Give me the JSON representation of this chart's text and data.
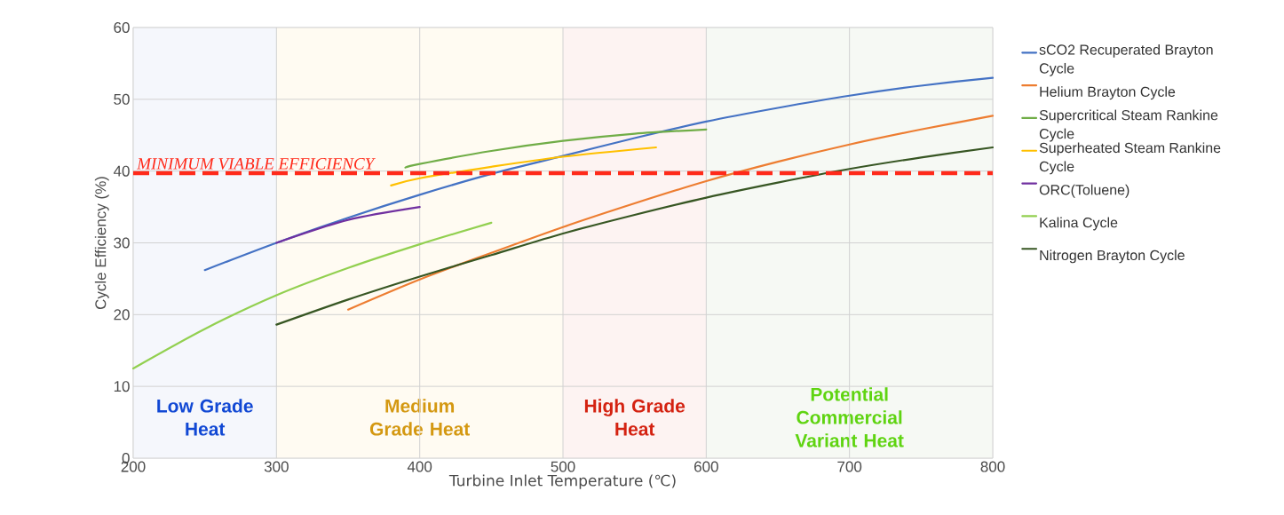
{
  "chart_data": {
    "type": "line",
    "xlabel": "Turbine Inlet Temperature (℃)",
    "ylabel": "Cycle Efficiency (%)",
    "xlim": [
      200,
      800
    ],
    "xticks": [
      200,
      300,
      400,
      500,
      600,
      700,
      800
    ],
    "ylim": [
      0,
      60
    ],
    "yticks": [
      0,
      10,
      20,
      30,
      40,
      50,
      60
    ],
    "grid": true,
    "legend": "right",
    "marker": "none",
    "line_style": "solid",
    "series": [
      {
        "name": "sCO2 Recuperated Brayton Cycle",
        "color": "#4472c4",
        "x": [
          250,
          300,
          350,
          400,
          450,
          500,
          550,
          600,
          650,
          700,
          750,
          800
        ],
        "values": [
          26.2,
          30,
          33.5,
          36.7,
          39.6,
          42.1,
          44.6,
          46.9,
          48.8,
          50.5,
          51.9,
          53.0
        ]
      },
      {
        "name": "Helium Brayton Cycle",
        "color": "#ed7d31",
        "x": [
          350,
          400,
          450,
          500,
          550,
          600,
          650,
          700,
          750,
          800
        ],
        "values": [
          20.7,
          24.9,
          28.6,
          32.2,
          35.5,
          38.6,
          41.3,
          43.7,
          45.8,
          47.7
        ]
      },
      {
        "name": "Supercritical Steam Rankine Cycle",
        "color": "#70ad47",
        "x": [
          390,
          400,
          450,
          500,
          550,
          600
        ],
        "values": [
          40.5,
          41.0,
          42.8,
          44.2,
          45.2,
          45.8
        ]
      },
      {
        "name": "Superheated Steam Rankine Cycle",
        "color": "#ffc000",
        "x": [
          380,
          400,
          450,
          500,
          565
        ],
        "values": [
          38.0,
          39.0,
          40.6,
          42.0,
          43.3
        ]
      },
      {
        "name": "ORC(Toluene)",
        "color": "#7030a0",
        "x": [
          300,
          350,
          400
        ],
        "values": [
          30.0,
          33.2,
          35.0
        ]
      },
      {
        "name": "Kalina Cycle",
        "color": "#92d050",
        "x": [
          200,
          250,
          300,
          350,
          400,
          450
        ],
        "values": [
          12.5,
          18.0,
          22.7,
          26.5,
          29.8,
          32.8
        ]
      },
      {
        "name": "Nitrogen Brayton Cycle",
        "color": "#375623",
        "x": [
          300,
          350,
          400,
          450,
          500,
          550,
          600,
          650,
          700,
          750,
          800
        ],
        "values": [
          18.6,
          22.1,
          25.3,
          28.3,
          31.3,
          33.9,
          36.3,
          38.4,
          40.3,
          41.9,
          43.3
        ]
      }
    ],
    "ref_lines": [
      {
        "axis": "y",
        "value": 39.7,
        "label": "MINIMUM VIABLE EFFICIENCY",
        "color": "#ff2a1a",
        "line_style": "dashed"
      }
    ],
    "bands": [
      {
        "axis": "x",
        "from": 200,
        "to": 300,
        "label": "Low Grade Heat",
        "color": "#f5f7fc"
      },
      {
        "axis": "x",
        "from": 300,
        "to": 500,
        "label": "Medium Grade Heat",
        "color": "#fffbf2"
      },
      {
        "axis": "x",
        "from": 500,
        "to": 600,
        "label": "High Grade Heat",
        "color": "#fdf3f2"
      },
      {
        "axis": "x",
        "from": 600,
        "to": 800,
        "label": "Potential Commercial Variant Heat",
        "color": "#f6f9f4"
      }
    ]
  }
}
